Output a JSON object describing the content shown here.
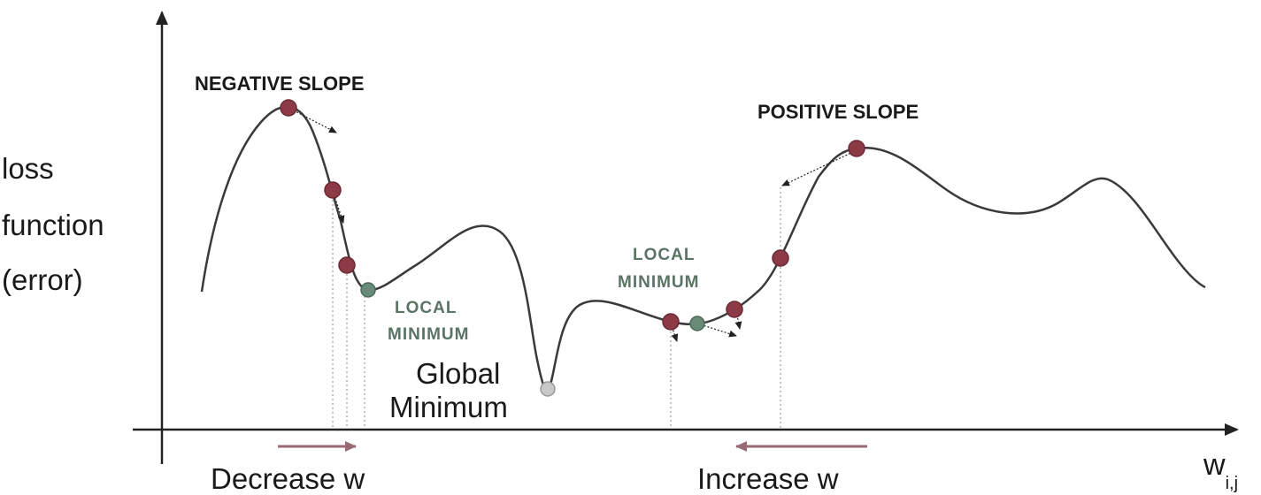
{
  "labels": {
    "negative_slope": "NEGATIVE SLOPE",
    "positive_slope": "POSITIVE SLOPE",
    "local_minimum_1_line1": "LOCAL",
    "local_minimum_1_line2": "MINIMUM",
    "local_minimum_2_line1": "LOCAL",
    "local_minimum_2_line2": "MINIMUM",
    "global_minimum_line1": "Global",
    "global_minimum_line2": "Minimum",
    "y_axis_line1": "loss",
    "y_axis_line2": "function",
    "y_axis_line3": "(error)",
    "x_axis_main": "w",
    "x_axis_sub": "i,j",
    "decrease": "Decrease w",
    "increase": "Increase w"
  },
  "colors": {
    "curve": "#3a3a3a",
    "point": "#8b3a46",
    "point_stroke": "#6a2a34",
    "local_min_point": "#6a8a78",
    "global_min_point": "#c8c8c8",
    "arrow_decrease": "#9a6a74",
    "arrow_increase": "#9a6a74",
    "axis": "#222222",
    "guide": "#b0b0b0"
  }
}
